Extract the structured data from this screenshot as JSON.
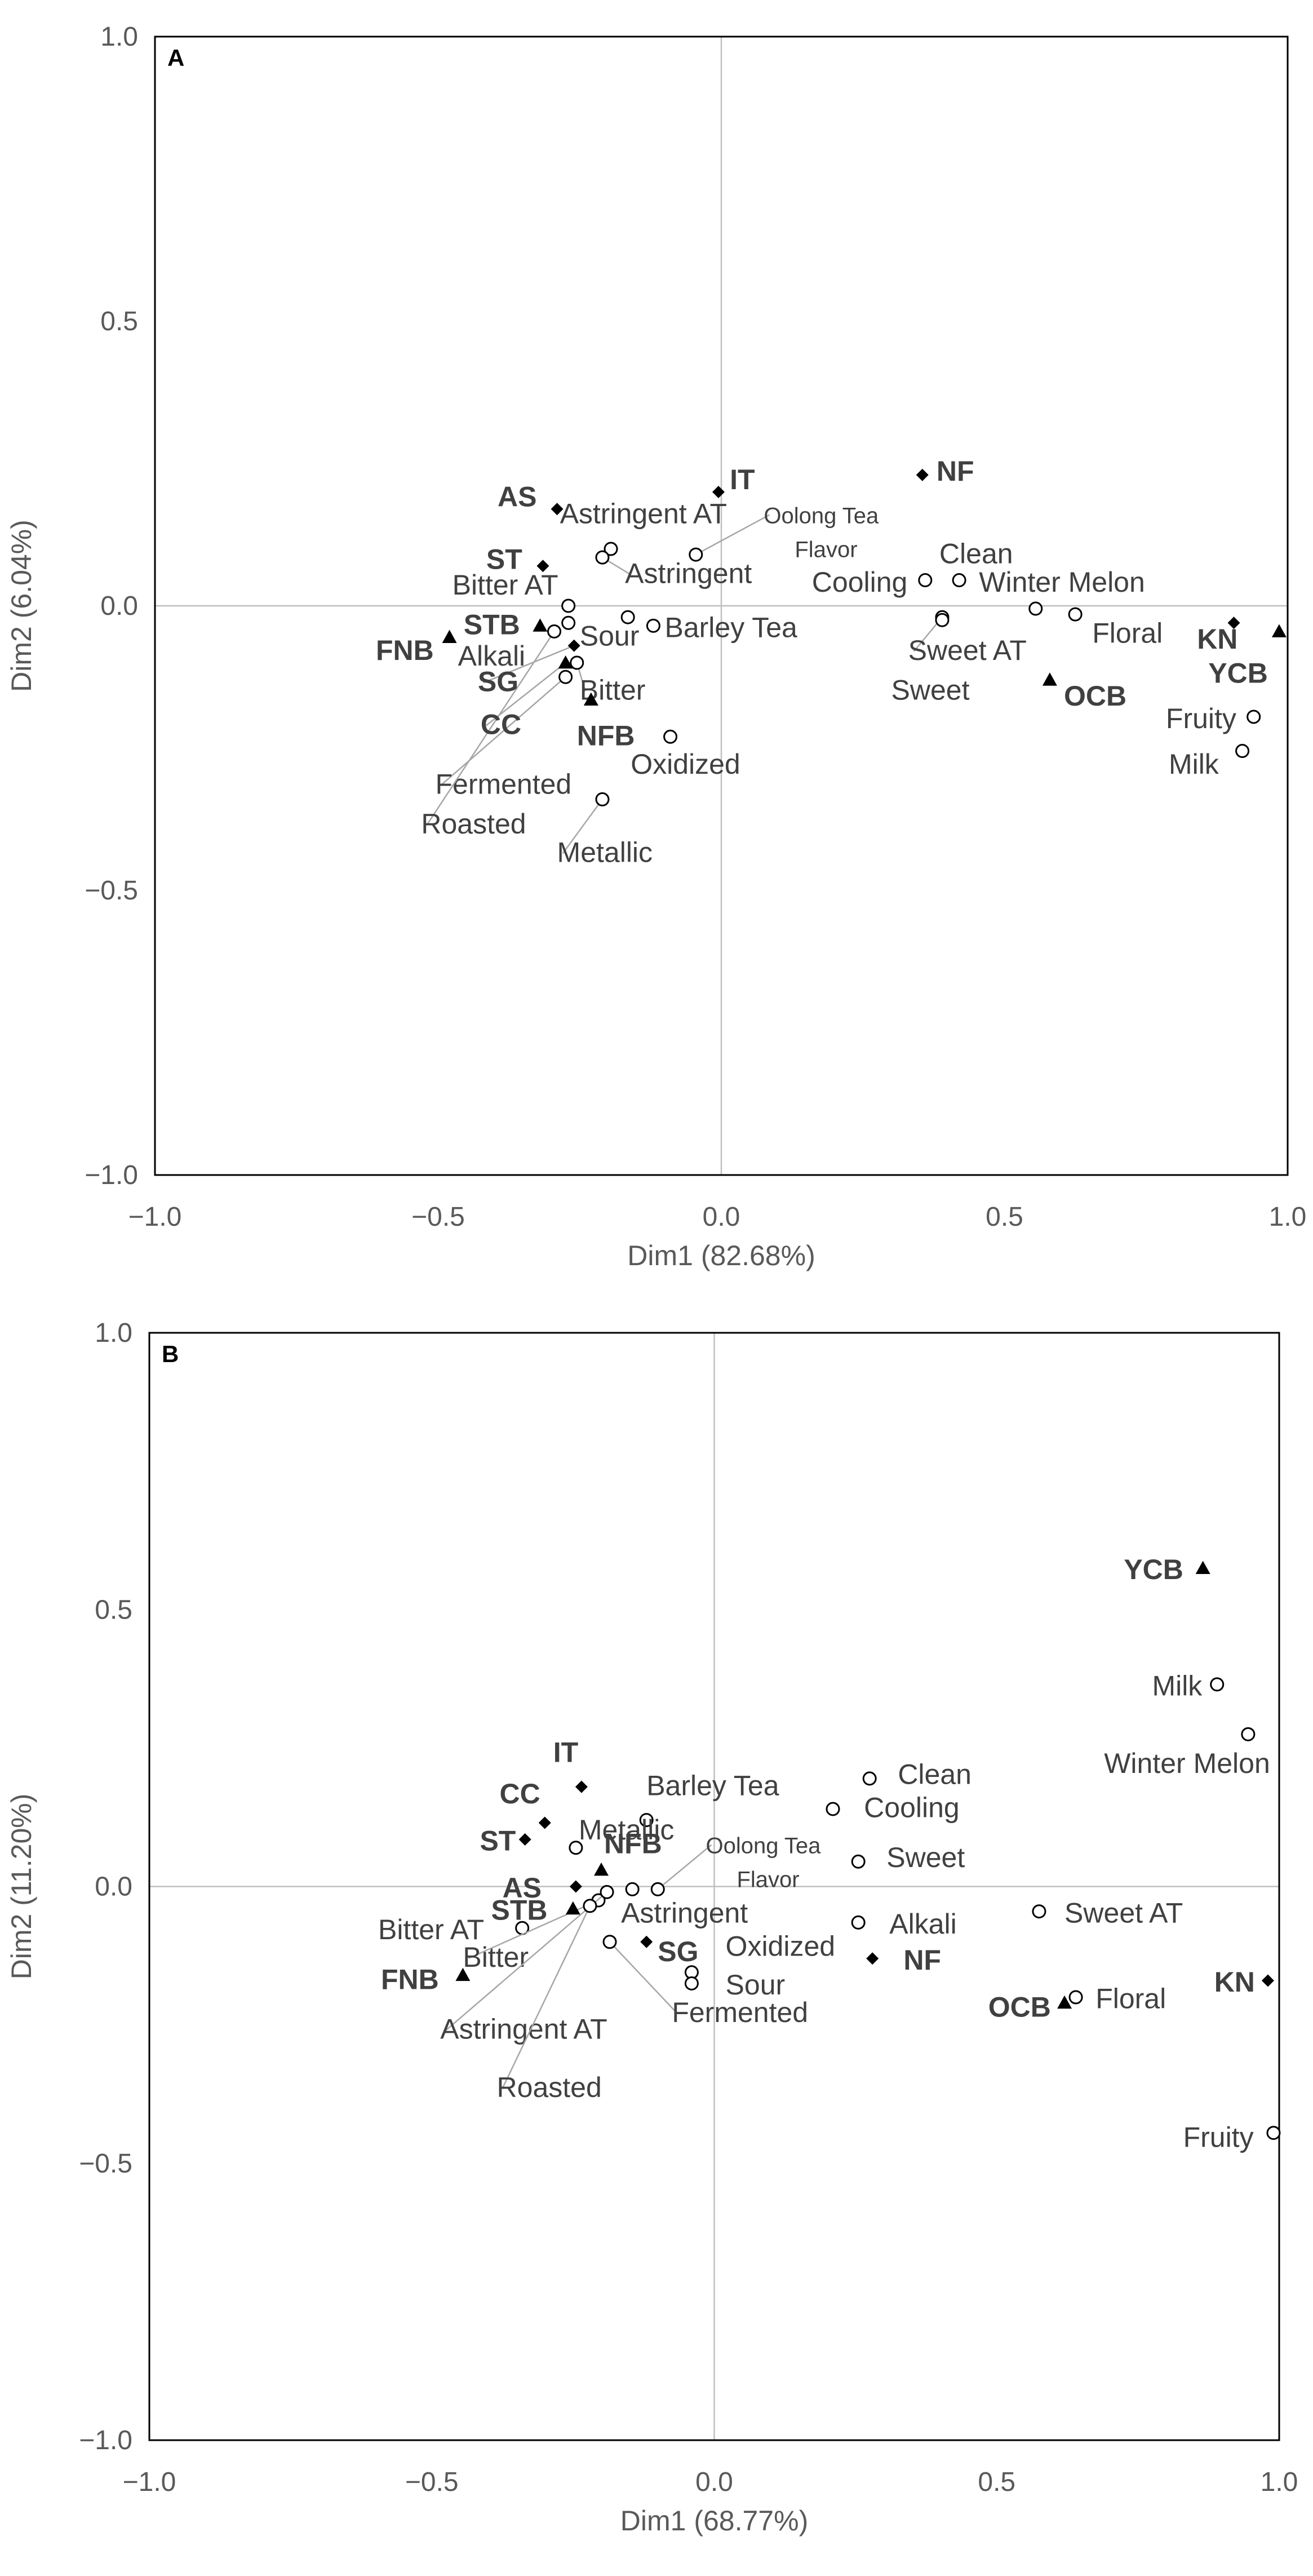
{
  "chart_data": [
    {
      "type": "scatter",
      "panel": "A",
      "xlabel": "Dim1 (82.68%)",
      "ylabel": "Dim2 (6.04%)",
      "xlim": [
        -1.0,
        1.0
      ],
      "ylim": [
        -1.0,
        1.0
      ],
      "xticks": [
        "−1.0",
        "−0.5",
        "0.0",
        "0.5",
        "1.0"
      ],
      "yticks": [
        "1.0",
        "0.5",
        "0.0",
        "−0.5",
        "−1.0"
      ],
      "series": [
        {
          "name": "attributes",
          "marker": "open-circle",
          "points": [
            {
              "label": "Astringent AT",
              "x": -0.195,
              "y": 0.1
            },
            {
              "label": "Astringent",
              "x": -0.21,
              "y": 0.085
            },
            {
              "label": "Oolong Tea Flavor",
              "x": -0.045,
              "y": 0.09
            },
            {
              "label": "Bitter AT",
              "x": -0.27,
              "y": 0.0
            },
            {
              "label": "Sour",
              "x": -0.165,
              "y": -0.02
            },
            {
              "label": "Barley Tea",
              "x": -0.12,
              "y": -0.035
            },
            {
              "label": "Alkali",
              "x": -0.27,
              "y": -0.03
            },
            {
              "label": "Bitter",
              "x": -0.255,
              "y": -0.1
            },
            {
              "label": "Fermented",
              "x": -0.275,
              "y": -0.125
            },
            {
              "label": "Roasted",
              "x": -0.295,
              "y": -0.045
            },
            {
              "label": "Oxidized",
              "x": -0.09,
              "y": -0.23
            },
            {
              "label": "Metallic",
              "x": -0.21,
              "y": -0.34
            },
            {
              "label": "Clean",
              "x": 0.42,
              "y": 0.045
            },
            {
              "label": "Cooling",
              "x": 0.36,
              "y": 0.045
            },
            {
              "label": "Winter Melon",
              "x": 0.555,
              "y": -0.005
            },
            {
              "label": "Sweet AT",
              "x": 0.39,
              "y": -0.02
            },
            {
              "label": "Sweet",
              "x": 0.39,
              "y": -0.025
            },
            {
              "label": "Floral",
              "x": 0.625,
              "y": -0.015
            },
            {
              "label": "Fruity",
              "x": 0.94,
              "y": -0.195
            },
            {
              "label": "Milk",
              "x": 0.92,
              "y": -0.255
            }
          ]
        },
        {
          "name": "products",
          "marker": "diamond",
          "points": [
            {
              "label": "AS",
              "x": -0.29,
              "y": 0.17
            },
            {
              "label": "IT",
              "x": -0.005,
              "y": 0.2
            },
            {
              "label": "NF",
              "x": 0.355,
              "y": 0.23
            },
            {
              "label": "ST",
              "x": -0.315,
              "y": 0.07
            },
            {
              "label": "SG",
              "x": -0.26,
              "y": -0.07
            },
            {
              "label": "KN",
              "x": 0.905,
              "y": -0.03
            }
          ]
        },
        {
          "name": "blends",
          "marker": "triangle",
          "points": [
            {
              "label": "STB",
              "x": -0.32,
              "y": -0.035
            },
            {
              "label": "FNB",
              "x": -0.48,
              "y": -0.055
            },
            {
              "label": "CC",
              "x": -0.275,
              "y": -0.1
            },
            {
              "label": "NFB",
              "x": -0.23,
              "y": -0.165
            },
            {
              "label": "OCB",
              "x": 0.58,
              "y": -0.13
            },
            {
              "label": "YCB",
              "x": 0.985,
              "y": -0.045
            }
          ]
        }
      ]
    },
    {
      "type": "scatter",
      "panel": "B",
      "xlabel": "Dim1 (68.77%)",
      "ylabel": "Dim2 (11.20%)",
      "xlim": [
        -1.0,
        1.0
      ],
      "ylim": [
        -1.0,
        1.0
      ],
      "xticks": [
        "−1.0",
        "−0.5",
        "0.0",
        "0.5",
        "1.0"
      ],
      "yticks": [
        "1.0",
        "0.5",
        "0.0",
        "−0.5",
        "−1.0"
      ],
      "series": [
        {
          "name": "attributes",
          "marker": "open-circle",
          "points": [
            {
              "label": "Barley Tea",
              "x": -0.12,
              "y": 0.12
            },
            {
              "label": "Metallic",
              "x": -0.245,
              "y": 0.07
            },
            {
              "label": "Oolong Tea Flavor",
              "x": -0.1,
              "y": -0.005
            },
            {
              "label": "Astringent",
              "x": -0.145,
              "y": -0.005
            },
            {
              "label": "Bitter AT",
              "x": -0.34,
              "y": -0.075
            },
            {
              "label": "Bitter",
              "x": -0.205,
              "y": -0.025
            },
            {
              "label": "Astringent AT",
              "x": -0.19,
              "y": -0.01
            },
            {
              "label": "Roasted",
              "x": -0.22,
              "y": -0.035
            },
            {
              "label": "Fermented",
              "x": -0.185,
              "y": -0.1
            },
            {
              "label": "Oxidized",
              "x": -0.04,
              "y": -0.155
            },
            {
              "label": "Sour",
              "x": -0.04,
              "y": -0.175
            },
            {
              "label": "Clean",
              "x": 0.275,
              "y": 0.195
            },
            {
              "label": "Cooling",
              "x": 0.21,
              "y": 0.14
            },
            {
              "label": "Sweet",
              "x": 0.255,
              "y": 0.045
            },
            {
              "label": "Alkali",
              "x": 0.255,
              "y": -0.065
            },
            {
              "label": "Sweet AT",
              "x": 0.575,
              "y": -0.045
            },
            {
              "label": "Floral",
              "x": 0.64,
              "y": -0.2
            },
            {
              "label": "Milk",
              "x": 0.89,
              "y": 0.365
            },
            {
              "label": "Winter Melon",
              "x": 0.945,
              "y": 0.275
            },
            {
              "label": "Fruity",
              "x": 0.99,
              "y": -0.445
            }
          ]
        },
        {
          "name": "products",
          "marker": "diamond",
          "points": [
            {
              "label": "IT",
              "x": -0.235,
              "y": 0.18
            },
            {
              "label": "CC",
              "x": -0.3,
              "y": 0.115
            },
            {
              "label": "ST",
              "x": -0.335,
              "y": 0.085
            },
            {
              "label": "AS",
              "x": -0.245,
              "y": 0.0
            },
            {
              "label": "SG",
              "x": -0.12,
              "y": -0.1
            },
            {
              "label": "NF",
              "x": 0.28,
              "y": -0.13
            },
            {
              "label": "KN",
              "x": 0.98,
              "y": -0.17
            }
          ]
        },
        {
          "name": "blends",
          "marker": "triangle",
          "points": [
            {
              "label": "NFB",
              "x": -0.2,
              "y": 0.03
            },
            {
              "label": "STB",
              "x": -0.25,
              "y": -0.04
            },
            {
              "label": "FNB",
              "x": -0.445,
              "y": -0.16
            },
            {
              "label": "OCB",
              "x": 0.62,
              "y": -0.21
            },
            {
              "label": "YCB",
              "x": 0.865,
              "y": 0.575
            }
          ]
        }
      ]
    }
  ]
}
